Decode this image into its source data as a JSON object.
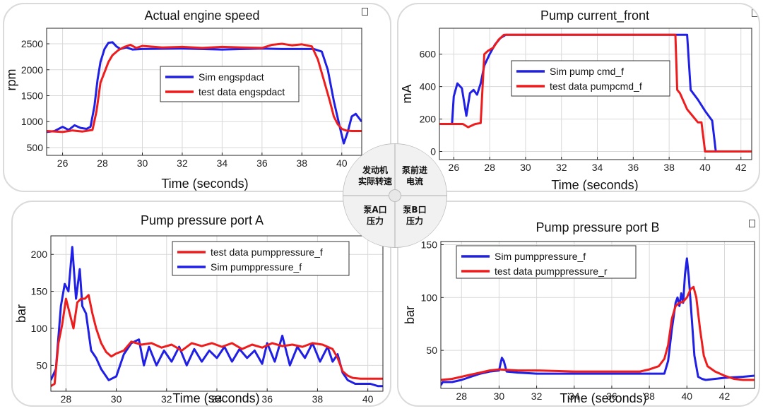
{
  "colors": {
    "sim": "#1f1fe6",
    "test": "#ee1c1c",
    "grid": "#d9d9d9",
    "axis": "#262626"
  },
  "hub": {
    "q0": [
      "发动机",
      "实际转速"
    ],
    "q1": [
      "泵前进",
      "电流"
    ],
    "q2": [
      "泵A口",
      "压力"
    ],
    "q3": [
      "泵B口",
      "压力"
    ]
  },
  "chart_data": [
    {
      "type": "line",
      "title": "Actual engine speed",
      "xlabel": "Time (seconds)",
      "ylabel": "rpm",
      "xlim": [
        25.2,
        41.0
      ],
      "ylim": [
        350,
        2800
      ],
      "xticks": [
        26,
        28,
        30,
        32,
        34,
        36,
        38,
        40
      ],
      "yticks": [
        500,
        1000,
        1500,
        2000,
        2500
      ],
      "grid": true,
      "legend_position": "center",
      "legend_order": [
        "sim",
        "test"
      ],
      "series": [
        {
          "name": "Sim engspdact",
          "key": "sim",
          "x": [
            25.2,
            25.6,
            26.0,
            26.3,
            26.6,
            26.9,
            27.2,
            27.4,
            27.6,
            27.75,
            27.9,
            28.1,
            28.3,
            28.5,
            28.7,
            28.9,
            29.2,
            29.5,
            30.0,
            32.0,
            34.0,
            36.0,
            37.0,
            38.0,
            38.6,
            39.0,
            39.3,
            39.6,
            39.9,
            40.1,
            40.3,
            40.5,
            40.7,
            40.9,
            41.0
          ],
          "y": [
            800,
            820,
            900,
            840,
            930,
            880,
            860,
            900,
            1300,
            1800,
            2150,
            2400,
            2520,
            2530,
            2450,
            2400,
            2430,
            2390,
            2400,
            2410,
            2390,
            2410,
            2400,
            2400,
            2400,
            2350,
            2000,
            1400,
            900,
            580,
            800,
            1100,
            1150,
            1050,
            1000
          ]
        },
        {
          "name": "test data engspdact",
          "key": "test",
          "x": [
            25.2,
            26.0,
            26.5,
            27.0,
            27.5,
            27.7,
            27.9,
            28.1,
            28.3,
            28.5,
            28.8,
            29.1,
            29.4,
            29.7,
            30.0,
            31.0,
            32.0,
            33.0,
            34.0,
            35.0,
            36.0,
            36.5,
            37.0,
            37.5,
            38.0,
            38.5,
            38.8,
            39.1,
            39.4,
            39.6,
            39.8,
            40.0,
            40.2,
            40.5,
            41.0
          ],
          "y": [
            820,
            800,
            830,
            810,
            840,
            1200,
            1750,
            1950,
            2150,
            2280,
            2380,
            2440,
            2480,
            2420,
            2460,
            2430,
            2440,
            2420,
            2440,
            2430,
            2420,
            2480,
            2500,
            2470,
            2490,
            2450,
            2200,
            1800,
            1400,
            1100,
            950,
            860,
            830,
            820,
            820
          ]
        }
      ]
    },
    {
      "type": "line",
      "title": "Pump current_front",
      "xlabel": "Time (seconds)",
      "ylabel": "mA",
      "xlim": [
        25.2,
        42.6
      ],
      "ylim": [
        -50,
        760
      ],
      "xticks": [
        26,
        28,
        30,
        32,
        34,
        36,
        38,
        40,
        42
      ],
      "yticks": [
        0,
        200,
        400,
        600
      ],
      "grid": true,
      "legend_position": "top-right",
      "legend_order": [
        "sim",
        "test"
      ],
      "series": [
        {
          "name": "Sim pump cmd_f",
          "key": "sim",
          "x": [
            25.9,
            26.0,
            26.2,
            26.45,
            26.7,
            26.9,
            27.1,
            27.3,
            27.5,
            27.7,
            28.0,
            28.3,
            28.6,
            28.9,
            30.0,
            34.0,
            38.0,
            38.8,
            39.0,
            39.2,
            39.6,
            40.0,
            40.4,
            40.6,
            41.0,
            42.6
          ],
          "y": [
            170,
            340,
            420,
            390,
            220,
            360,
            380,
            350,
            420,
            530,
            600,
            660,
            700,
            720,
            720,
            720,
            720,
            720,
            720,
            380,
            320,
            250,
            190,
            0,
            0,
            0
          ]
        },
        {
          "name": "test data pumpcmd_f",
          "key": "test",
          "x": [
            25.2,
            26.0,
            26.5,
            26.8,
            27.2,
            27.5,
            27.7,
            27.9,
            28.2,
            28.5,
            28.8,
            29.0,
            30.0,
            34.0,
            38.0,
            38.35,
            38.45,
            38.6,
            39.0,
            39.3,
            39.6,
            39.8,
            40.0,
            40.2,
            41.0,
            42.6
          ],
          "y": [
            170,
            170,
            170,
            150,
            170,
            175,
            600,
            620,
            640,
            690,
            720,
            720,
            720,
            720,
            720,
            720,
            380,
            360,
            260,
            220,
            180,
            180,
            0,
            0,
            0,
            0
          ]
        }
      ]
    },
    {
      "type": "line",
      "title": "Pump pressure port A",
      "xlabel": "Time (seconds)",
      "ylabel": "bar",
      "xlim": [
        27.4,
        40.6
      ],
      "ylim": [
        15,
        225
      ],
      "xticks": [
        28,
        30,
        32,
        34,
        36,
        38,
        40
      ],
      "yticks": [
        50,
        100,
        150,
        200
      ],
      "grid": true,
      "legend_position": "top-right",
      "legend_order": [
        "test",
        "sim"
      ],
      "series": [
        {
          "name": "Sim pumppressure_f",
          "key": "sim",
          "x": [
            27.4,
            27.6,
            27.8,
            27.95,
            28.1,
            28.25,
            28.4,
            28.55,
            28.65,
            28.8,
            29.0,
            29.2,
            29.4,
            29.7,
            30.0,
            30.3,
            30.6,
            30.9,
            31.1,
            31.3,
            31.6,
            31.9,
            32.2,
            32.5,
            32.8,
            33.1,
            33.4,
            33.7,
            34.0,
            34.3,
            34.6,
            34.9,
            35.2,
            35.5,
            35.8,
            36.0,
            36.3,
            36.6,
            36.9,
            37.2,
            37.5,
            37.8,
            38.1,
            38.4,
            38.6,
            38.8,
            39.0,
            39.2,
            39.5,
            39.8,
            40.1,
            40.4,
            40.6
          ],
          "y": [
            30,
            45,
            130,
            160,
            150,
            210,
            140,
            180,
            130,
            120,
            70,
            60,
            45,
            30,
            35,
            65,
            80,
            85,
            50,
            75,
            50,
            70,
            55,
            75,
            50,
            72,
            55,
            70,
            60,
            75,
            55,
            72,
            60,
            70,
            52,
            80,
            55,
            90,
            50,
            75,
            60,
            80,
            55,
            75,
            55,
            65,
            40,
            30,
            25,
            25,
            25,
            22,
            22
          ]
        },
        {
          "name": "test data pumppressure_f",
          "key": "test",
          "x": [
            27.4,
            27.55,
            27.7,
            27.85,
            28.0,
            28.15,
            28.3,
            28.45,
            28.6,
            28.75,
            28.9,
            29.05,
            29.2,
            29.4,
            29.6,
            29.8,
            30.0,
            30.3,
            30.6,
            31.0,
            31.4,
            31.8,
            32.2,
            32.6,
            33.0,
            33.4,
            33.8,
            34.2,
            34.6,
            35.0,
            35.4,
            35.8,
            36.2,
            36.6,
            37.0,
            37.4,
            37.8,
            38.2,
            38.6,
            38.8,
            39.0,
            39.2,
            39.4,
            39.7,
            40.0,
            40.3,
            40.6
          ],
          "y": [
            22,
            25,
            80,
            105,
            140,
            120,
            100,
            135,
            140,
            140,
            145,
            120,
            100,
            80,
            68,
            62,
            66,
            70,
            82,
            78,
            80,
            74,
            78,
            70,
            80,
            76,
            80,
            75,
            80,
            72,
            78,
            74,
            80,
            76,
            78,
            75,
            80,
            78,
            72,
            60,
            42,
            36,
            33,
            32,
            32,
            32,
            32
          ]
        }
      ]
    },
    {
      "type": "line",
      "title": "Pump pressure port B",
      "xlabel": "Time (seconds)",
      "ylabel": "bar",
      "xlim": [
        26.9,
        43.6
      ],
      "ylim": [
        14,
        153
      ],
      "xticks": [
        28,
        30,
        32,
        34,
        36,
        38,
        40,
        42
      ],
      "yticks": [
        50,
        100,
        150
      ],
      "grid": true,
      "legend_position": "top-left",
      "legend_order": [
        "sim",
        "test"
      ],
      "series": [
        {
          "name": "Sim pumppressure_f",
          "key": "sim",
          "x": [
            26.9,
            27.0,
            27.5,
            28.0,
            28.5,
            29.0,
            29.5,
            30.0,
            30.15,
            30.25,
            30.4,
            31.0,
            32.0,
            34.0,
            36.0,
            38.0,
            38.8,
            39.0,
            39.2,
            39.4,
            39.5,
            39.6,
            39.7,
            39.8,
            39.9,
            40.0,
            40.1,
            40.2,
            40.4,
            40.6,
            40.8,
            41.0,
            41.5,
            42.0,
            43.0,
            43.6
          ],
          "y": [
            17,
            20,
            20,
            22,
            25,
            28,
            30,
            31,
            43,
            40,
            30,
            29,
            28,
            28,
            28,
            28,
            28,
            40,
            70,
            95,
            100,
            92,
            104,
            95,
            122,
            137,
            120,
            95,
            45,
            25,
            23,
            22,
            23,
            24,
            25,
            26
          ]
        },
        {
          "name": "test data pumppressure_r",
          "key": "test",
          "x": [
            26.9,
            27.5,
            28.0,
            28.5,
            29.0,
            29.5,
            30.0,
            31.0,
            32.0,
            34.0,
            36.0,
            37.5,
            38.0,
            38.5,
            38.8,
            39.0,
            39.2,
            39.4,
            39.6,
            39.8,
            40.0,
            40.2,
            40.35,
            40.5,
            40.7,
            40.9,
            41.1,
            41.5,
            42.0,
            42.5,
            43.0,
            43.6
          ],
          "y": [
            22,
            23,
            25,
            27,
            29,
            31,
            32,
            31,
            31,
            30,
            30,
            30,
            32,
            35,
            42,
            55,
            80,
            92,
            95,
            96,
            100,
            108,
            110,
            100,
            70,
            45,
            35,
            30,
            26,
            23,
            22,
            22
          ]
        }
      ]
    }
  ]
}
